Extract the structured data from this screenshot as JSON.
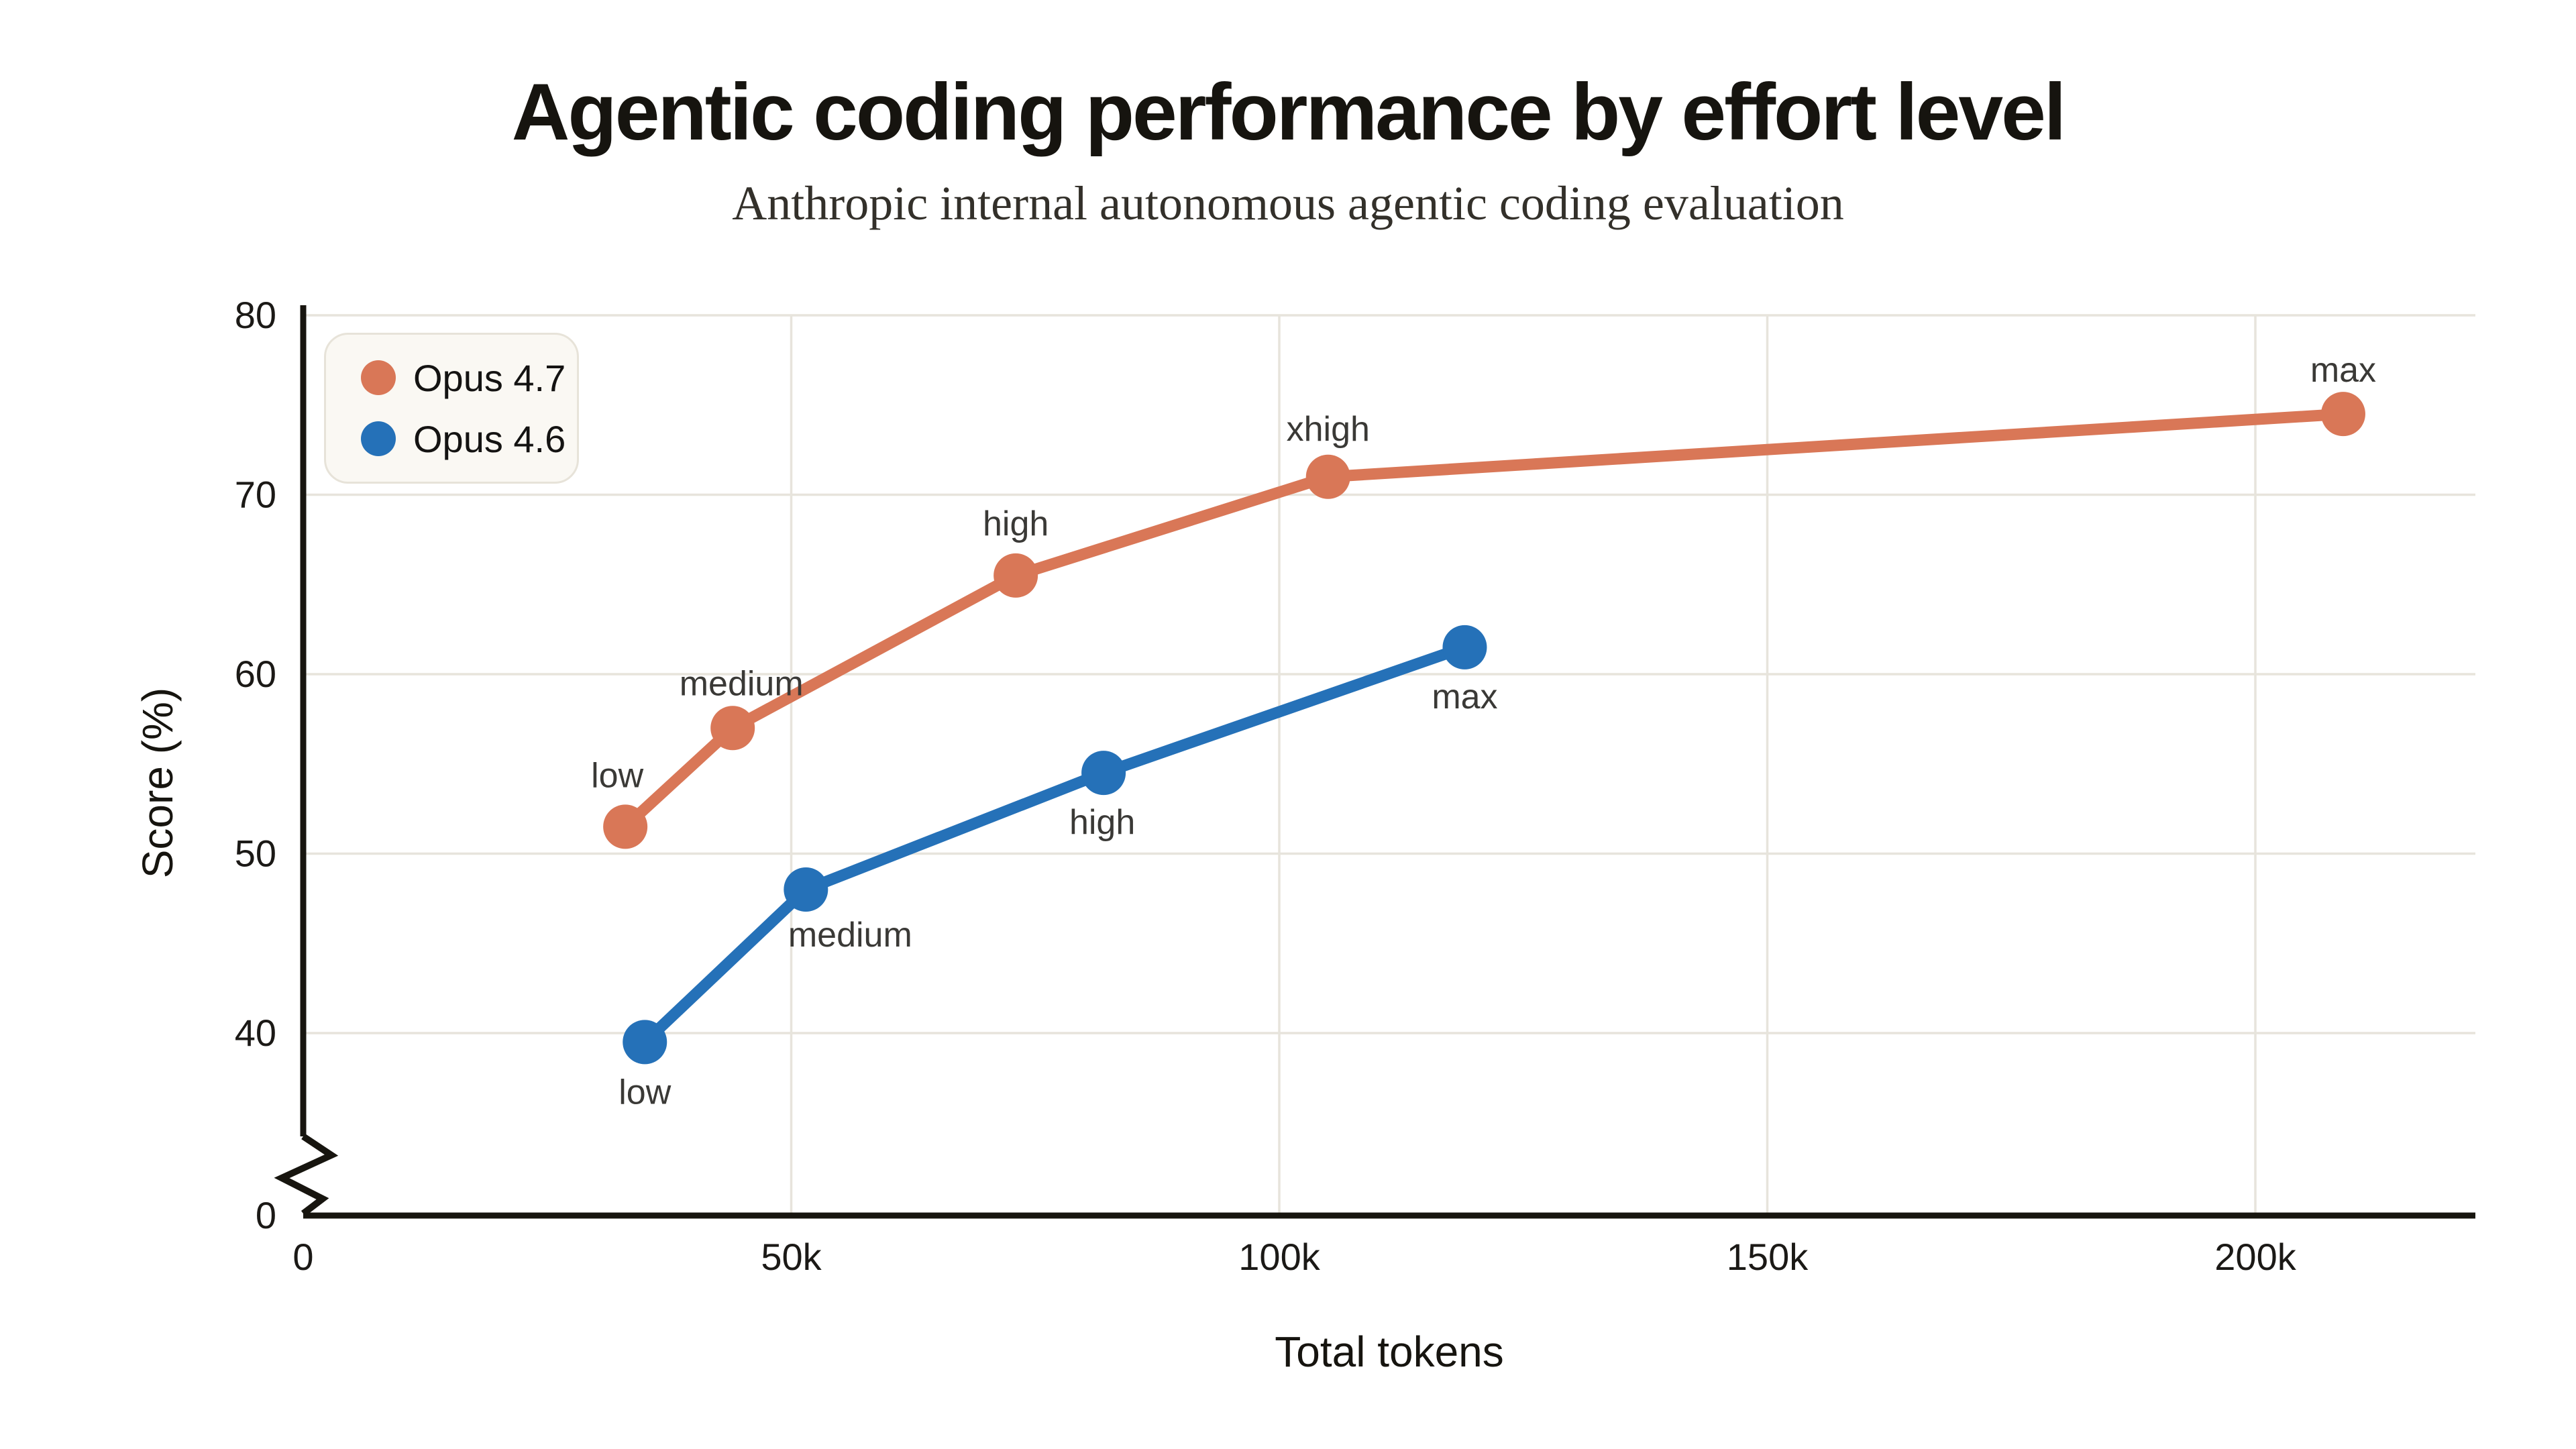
{
  "header": {
    "title": "Agentic coding performance by effort level",
    "subtitle": "Anthropic internal autonomous agentic coding evaluation"
  },
  "legend": {
    "items": [
      {
        "label": "Opus 4.7",
        "color": "#d97757"
      },
      {
        "label": "Opus 4.6",
        "color": "#2571b8"
      }
    ]
  },
  "colors": {
    "accent_orange": "#d97757",
    "accent_blue": "#2571b8",
    "grid": "#e7e4dc",
    "axis": "#17150f",
    "legend_bg": "#faf8f3",
    "legend_border": "#e7e3d9"
  },
  "chart_data": {
    "type": "line",
    "title": "Agentic coding performance by effort level",
    "subtitle": "Anthropic internal autonomous agentic coding evaluation",
    "xlabel": "Total tokens",
    "ylabel": "Score (%)",
    "grid": true,
    "legend_position": "top-left",
    "x_axis": {
      "ticks": [
        {
          "v": 0,
          "label": "0"
        },
        {
          "v": 50000,
          "label": "50k"
        },
        {
          "v": 100000,
          "label": "100k"
        },
        {
          "v": 150000,
          "label": "150k"
        },
        {
          "v": 200000,
          "label": "200k"
        }
      ],
      "max": 222000
    },
    "y_axis": {
      "ticks": [
        {
          "v": 0,
          "label": "0"
        },
        {
          "v": 40,
          "label": "40"
        },
        {
          "v": 50,
          "label": "50"
        },
        {
          "v": 60,
          "label": "60"
        },
        {
          "v": 70,
          "label": "70"
        },
        {
          "v": 80,
          "label": "80"
        }
      ],
      "break_between": [
        0,
        40
      ],
      "display_range": [
        40,
        80
      ]
    },
    "series": [
      {
        "name": "Opus 4.7",
        "color": "#d97757",
        "label_side": "above",
        "points": [
          {
            "x": 33000,
            "y": 51.5,
            "label": "low",
            "dx": -12,
            "dy": -77
          },
          {
            "x": 44000,
            "y": 57,
            "label": "medium",
            "dx": 13,
            "dy": -67
          },
          {
            "x": 73000,
            "y": 65.5,
            "label": "high",
            "dx": 0,
            "dy": -78
          },
          {
            "x": 105000,
            "y": 71,
            "label": "xhigh",
            "dx": 0,
            "dy": -72
          },
          {
            "x": 209000,
            "y": 74.5,
            "label": "max",
            "dx": 0,
            "dy": -66
          }
        ]
      },
      {
        "name": "Opus 4.6",
        "color": "#2571b8",
        "label_side": "below",
        "points": [
          {
            "x": 35000,
            "y": 39.5,
            "label": "low",
            "dx": 0,
            "dy": 74
          },
          {
            "x": 51500,
            "y": 48,
            "label": "medium",
            "dx": 66,
            "dy": 67
          },
          {
            "x": 82000,
            "y": 54.5,
            "label": "high",
            "dx": -2,
            "dy": 73
          },
          {
            "x": 119000,
            "y": 61.5,
            "label": "max",
            "dx": 0,
            "dy": 73
          }
        ]
      }
    ]
  }
}
